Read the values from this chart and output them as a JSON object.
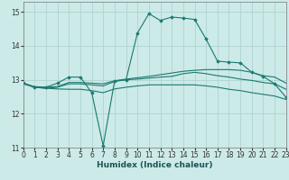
{
  "xlabel": "Humidex (Indice chaleur)",
  "xlim": [
    0,
    23
  ],
  "ylim": [
    11,
    15.3
  ],
  "yticks": [
    11,
    12,
    13,
    14,
    15
  ],
  "xticks": [
    0,
    1,
    2,
    3,
    4,
    5,
    6,
    7,
    8,
    9,
    10,
    11,
    12,
    13,
    14,
    15,
    16,
    17,
    18,
    19,
    20,
    21,
    22,
    23
  ],
  "bg_color": "#cceae8",
  "grid_color": "#aed4d2",
  "line_color": "#1a7a6e",
  "line1_x": [
    0,
    1,
    2,
    3,
    4,
    5,
    6,
    7,
    8,
    9,
    10,
    11,
    12,
    13,
    14,
    15,
    16,
    17,
    18,
    19,
    20,
    21,
    22,
    23
  ],
  "line1_y": [
    12.9,
    12.78,
    12.78,
    12.9,
    13.08,
    13.08,
    12.62,
    11.05,
    12.97,
    13.0,
    14.38,
    14.95,
    14.75,
    14.85,
    14.82,
    14.78,
    14.2,
    13.55,
    13.52,
    13.5,
    13.22,
    13.1,
    12.88,
    12.48
  ],
  "line2_x": [
    0,
    1,
    2,
    3,
    4,
    5,
    6,
    7,
    8,
    9,
    10,
    11,
    12,
    13,
    14,
    15,
    16,
    17,
    18,
    19,
    20,
    21,
    22,
    23
  ],
  "line2_y": [
    12.9,
    12.8,
    12.78,
    12.8,
    12.92,
    12.92,
    12.9,
    12.88,
    12.97,
    13.02,
    13.06,
    13.1,
    13.15,
    13.2,
    13.25,
    13.28,
    13.3,
    13.3,
    13.3,
    13.28,
    13.22,
    13.12,
    13.08,
    12.9
  ],
  "line3_x": [
    0,
    1,
    2,
    3,
    4,
    5,
    6,
    7,
    8,
    9,
    10,
    11,
    12,
    13,
    14,
    15,
    16,
    17,
    18,
    19,
    20,
    21,
    22,
    23
  ],
  "line3_y": [
    12.9,
    12.78,
    12.75,
    12.78,
    12.88,
    12.88,
    12.85,
    12.82,
    12.95,
    13.0,
    13.02,
    13.05,
    13.08,
    13.1,
    13.18,
    13.22,
    13.18,
    13.12,
    13.08,
    13.02,
    12.98,
    12.92,
    12.88,
    12.72
  ],
  "line4_x": [
    0,
    1,
    2,
    3,
    4,
    5,
    6,
    7,
    8,
    9,
    10,
    11,
    12,
    13,
    14,
    15,
    16,
    17,
    18,
    19,
    20,
    21,
    22,
    23
  ],
  "line4_y": [
    12.88,
    12.78,
    12.75,
    12.73,
    12.72,
    12.72,
    12.68,
    12.62,
    12.73,
    12.78,
    12.82,
    12.85,
    12.85,
    12.85,
    12.85,
    12.85,
    12.82,
    12.78,
    12.72,
    12.68,
    12.62,
    12.57,
    12.52,
    12.42
  ]
}
